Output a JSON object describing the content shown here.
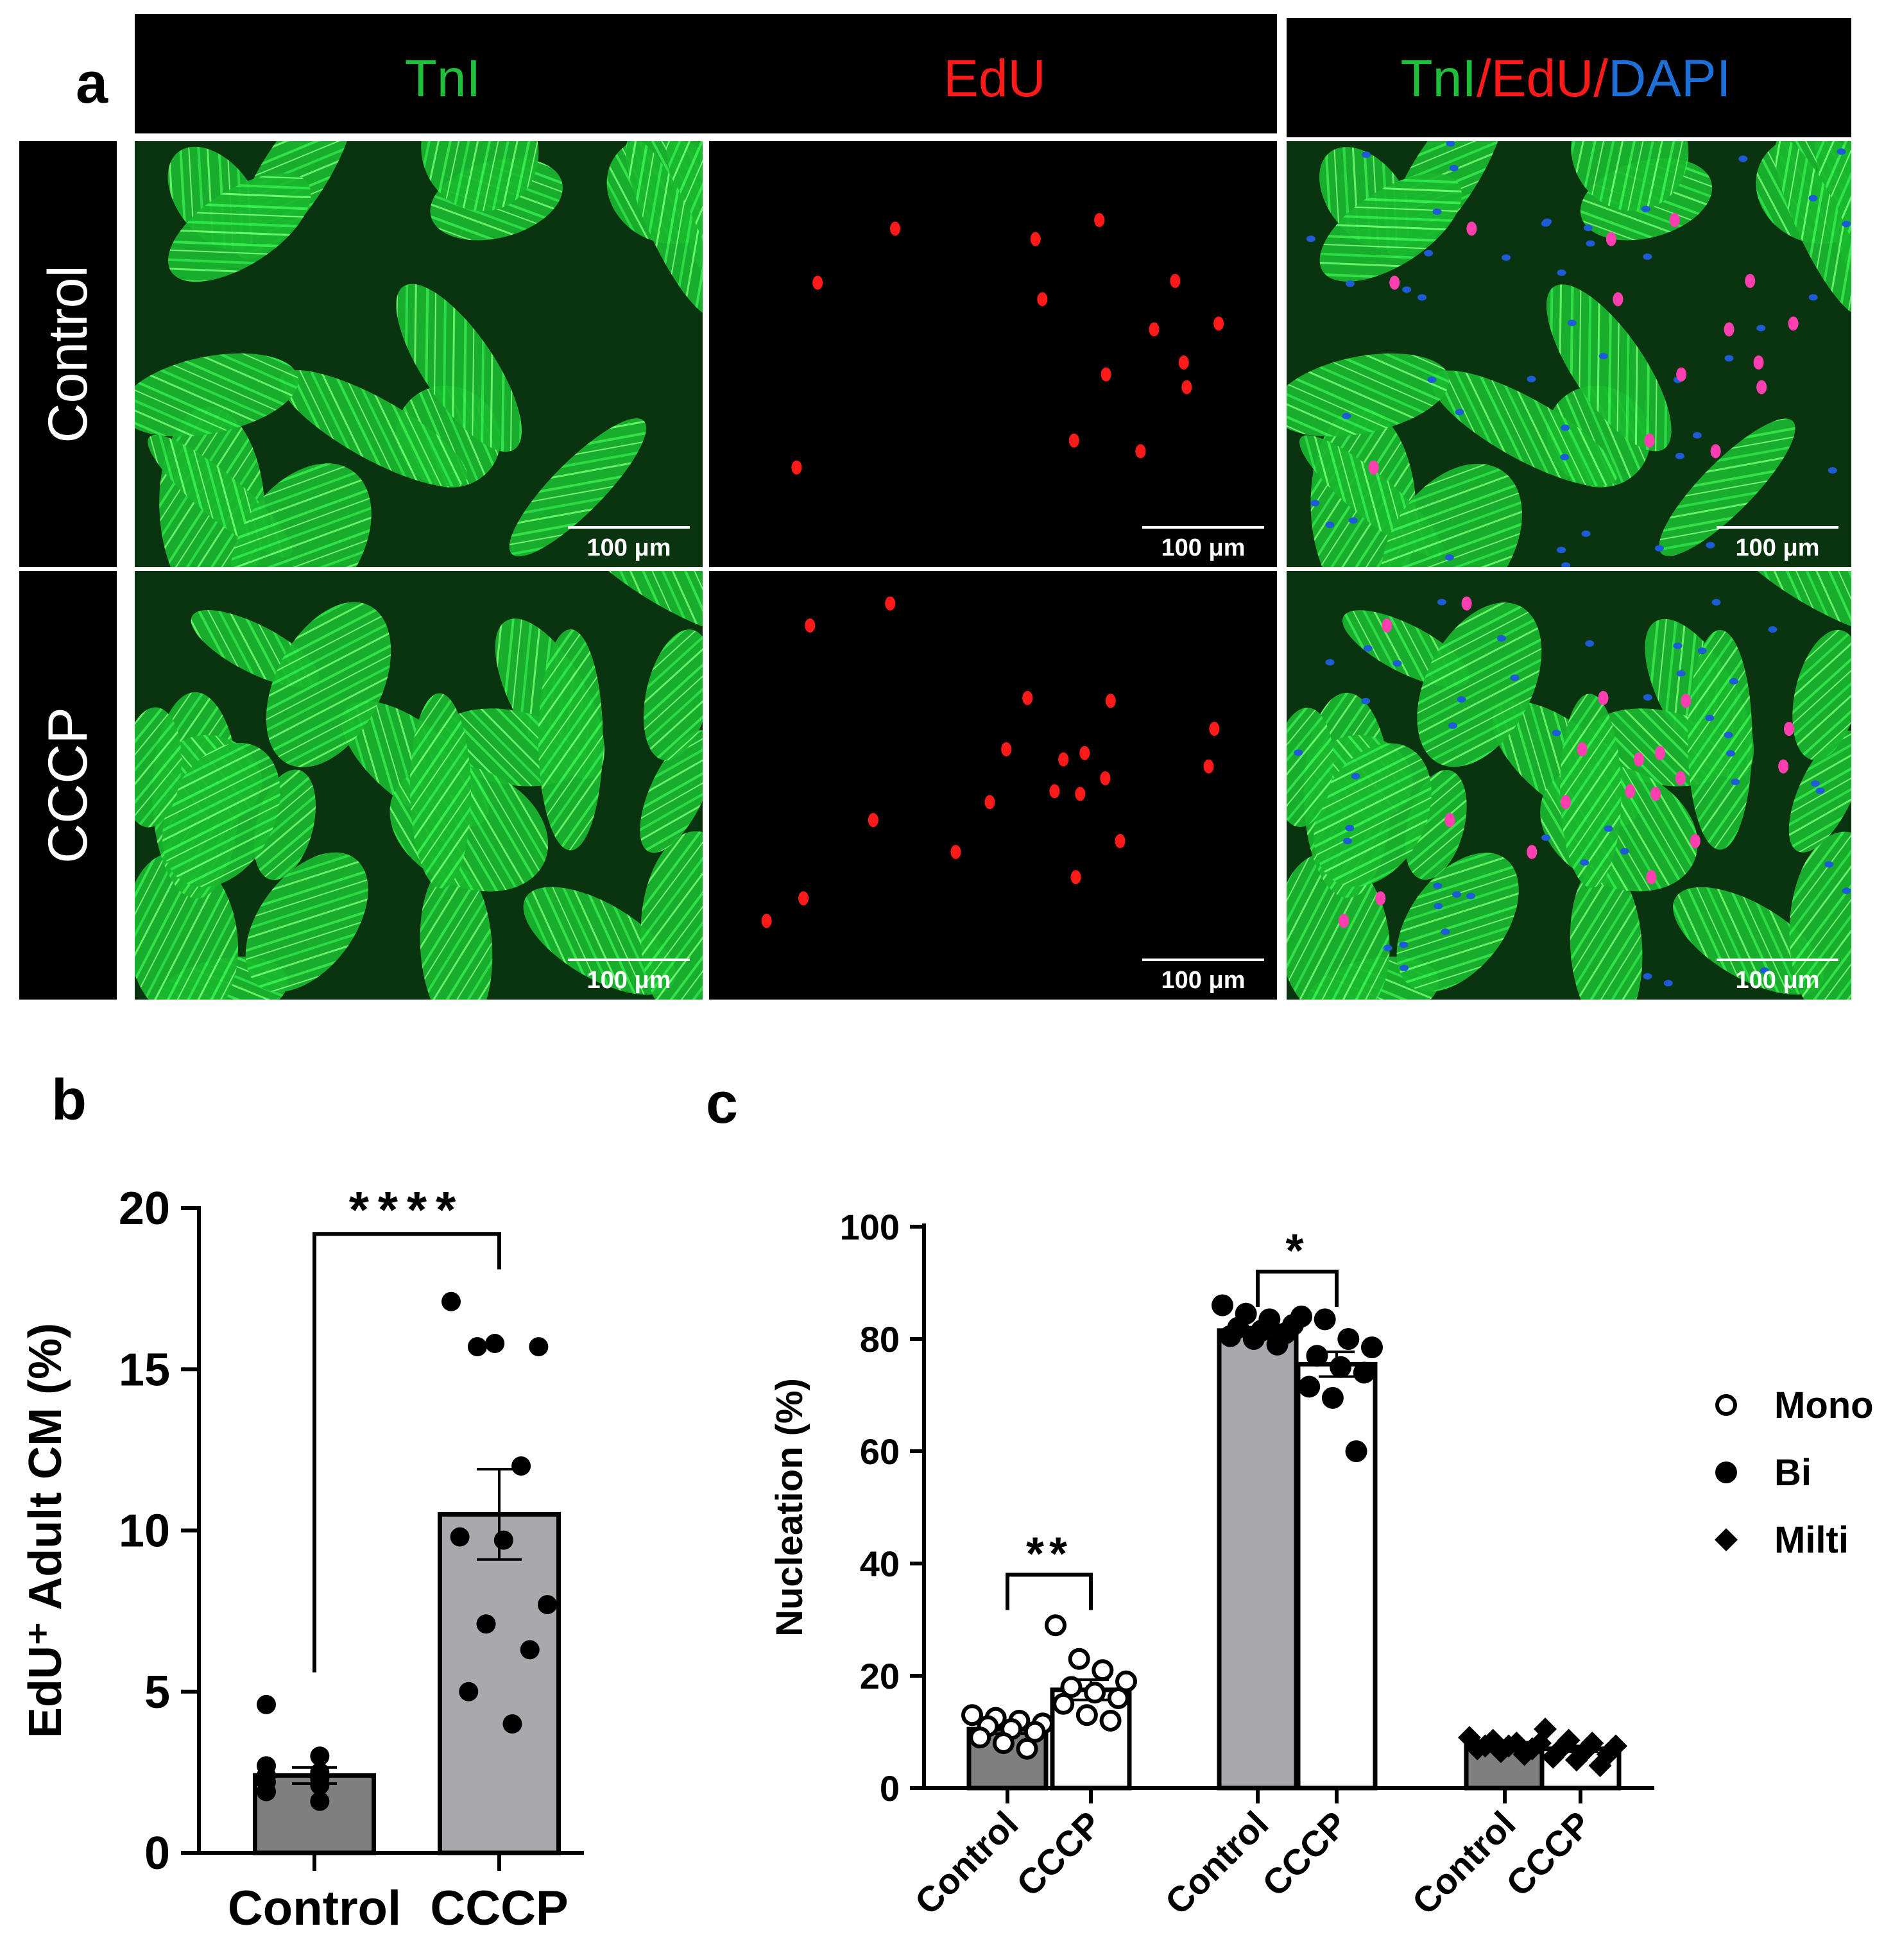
{
  "panel_a": {
    "label": "a",
    "headers": [
      {
        "parts": [
          {
            "text": "TnI",
            "color": "#1fbf3a"
          }
        ]
      },
      {
        "parts": [
          {
            "text": "EdU",
            "color": "#ff1a1a"
          }
        ]
      },
      {
        "parts": [
          {
            "text": "TnI",
            "color": "#1fbf3a"
          },
          {
            "text": "/",
            "color": "#ff1a1a"
          },
          {
            "text": "EdU",
            "color": "#ff1a1a"
          },
          {
            "text": "/",
            "color": "#ff1a1a"
          },
          {
            "text": "DAPI",
            "color": "#1e6fd6"
          }
        ]
      }
    ],
    "rows": [
      "Control",
      "CCCP"
    ],
    "scale_bar": "100 μm",
    "colors": {
      "tni": "#1fd23a",
      "edu": "#ff1a1a",
      "merge_nucleus": "#ff3fb0",
      "dapi": "#1e5bd6"
    }
  },
  "chart_data": [
    {
      "panel": "b",
      "type": "bar",
      "categories": [
        "Control",
        "CCCP"
      ],
      "values": [
        2.4,
        10.5
      ],
      "sem": [
        0.25,
        1.4
      ],
      "points": [
        [
          4.6,
          3.0,
          2.7,
          2.5,
          2.4,
          2.3,
          2.2,
          2.1,
          1.9,
          1.6
        ],
        [
          17.1,
          15.8,
          15.7,
          15.7,
          12.0,
          9.8,
          9.7,
          7.7,
          7.1,
          6.3,
          5.0,
          4.0
        ]
      ],
      "bar_colors": [
        "#7f7f7f",
        "#a8a8ad"
      ],
      "ylabel": "EdU⁺ Adult CM (%)",
      "ylim": [
        0,
        20
      ],
      "yticks": [
        0,
        5,
        10,
        15,
        20
      ],
      "significance": "****"
    },
    {
      "panel": "c",
      "type": "bar",
      "groups": [
        "Mono",
        "Bi",
        "Milti"
      ],
      "categories": [
        "Control",
        "CCCP",
        "Control",
        "CCCP",
        "Control",
        "CCCP"
      ],
      "values": [
        10.5,
        17.5,
        81.5,
        75.5,
        8.0,
        7.0
      ],
      "sem": [
        0.8,
        1.8,
        0.6,
        2.2,
        0.3,
        0.5
      ],
      "bar_colors": [
        "#7f7f7f",
        "#ffffff",
        "#a8a8ad",
        "#ffffff",
        "#7f7f7f",
        "#ffffff"
      ],
      "points": [
        [
          13.0,
          12.5,
          12.0,
          11.5,
          11.0,
          10.5,
          10.0,
          9.0,
          8.0,
          7.0
        ],
        [
          29.0,
          23.0,
          21.0,
          19.0,
          18.0,
          17.0,
          16.0,
          15.0,
          13.0,
          12.0
        ],
        [
          86.0,
          84.5,
          83.5,
          82.5,
          82.0,
          81.5,
          81.0,
          80.5,
          80.0,
          79.0
        ],
        [
          84.0,
          83.5,
          80.0,
          78.5,
          77.0,
          75.0,
          74.0,
          71.5,
          69.5,
          60.0
        ],
        [
          9.0,
          8.5,
          8.0,
          8.0,
          7.5,
          7.5,
          7.0,
          7.0,
          6.5,
          6.0
        ],
        [
          10.5,
          8.5,
          8.0,
          7.5,
          7.0,
          6.5,
          6.0,
          5.5,
          5.0,
          4.0
        ]
      ],
      "markers": [
        "circle",
        "circle",
        "dot",
        "dot",
        "diamond",
        "diamond"
      ],
      "ylabel": "Nucleation (%)",
      "ylim": [
        0,
        100
      ],
      "yticks": [
        0,
        20,
        40,
        60,
        80,
        100
      ],
      "significance": [
        {
          "pair": [
            0,
            1
          ],
          "label": "**"
        },
        {
          "pair": [
            2,
            3
          ],
          "label": "*"
        }
      ],
      "legend": [
        "Mono",
        "Bi",
        "Milti"
      ],
      "legend_position": "right"
    }
  ]
}
